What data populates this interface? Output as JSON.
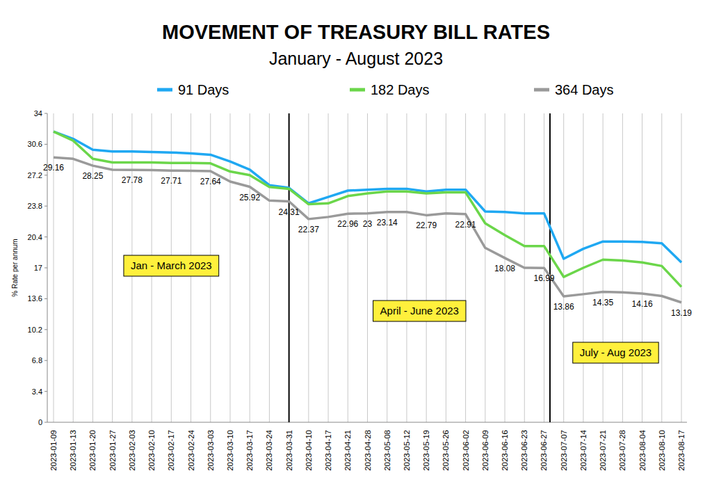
{
  "chart_data": {
    "type": "line",
    "title": "MOVEMENT OF TREASURY BILL RATES",
    "subtitle": "January - August 2023",
    "y_label": "% Rate per annum",
    "categories": [
      "2023-01-09",
      "2023-01-13",
      "2023-01-20",
      "2023-01-27",
      "2023-02-03",
      "2023-02-10",
      "2023-02-17",
      "2023-02-24",
      "2023-03-03",
      "2023-03-10",
      "2023-03-17",
      "2023-03-24",
      "2023-03-31",
      "2023-04-10",
      "2023-04-17",
      "2023-04-21",
      "2023-04-28",
      "2023-05-08",
      "2023-05-12",
      "2023-05-19",
      "2023-05-26",
      "2023-06-02",
      "2023-06-09",
      "2023-06-16",
      "2023-06-23",
      "2023-06-27",
      "2023-07-07",
      "2023-07-14",
      "2023-07-21",
      "2023-07-28",
      "2023-08-04",
      "2023-08-10",
      "2023-08-17"
    ],
    "series": [
      {
        "name": "91 Days",
        "color": "#1fa8f2",
        "values": [
          32.0,
          31.2,
          30.0,
          29.8,
          29.8,
          29.75,
          29.7,
          29.6,
          29.45,
          28.7,
          27.8,
          26.1,
          25.8,
          24.1,
          24.8,
          25.5,
          25.6,
          25.7,
          25.7,
          25.4,
          25.6,
          25.6,
          23.2,
          23.15,
          23.0,
          23.0,
          18.0,
          19.1,
          19.9,
          19.9,
          19.85,
          19.7,
          17.6
        ]
      },
      {
        "name": "182 Days",
        "color": "#6bd64a",
        "values": [
          32.0,
          31.0,
          29.0,
          28.6,
          28.6,
          28.6,
          28.55,
          28.55,
          28.5,
          27.6,
          27.2,
          25.9,
          25.7,
          24.0,
          24.1,
          24.9,
          25.2,
          25.4,
          25.4,
          25.2,
          25.3,
          25.3,
          21.9,
          20.6,
          19.4,
          19.4,
          16.0,
          17.0,
          17.9,
          17.8,
          17.6,
          17.2,
          14.9
        ]
      },
      {
        "name": "364 Days",
        "color": "#9a9a9a",
        "data_labels": true,
        "values": [
          29.16,
          29.0,
          28.25,
          27.8,
          27.78,
          27.75,
          27.71,
          27.68,
          27.64,
          26.5,
          25.92,
          24.4,
          24.31,
          22.37,
          22.6,
          22.96,
          23,
          23.14,
          23.14,
          22.79,
          23.0,
          22.91,
          19.2,
          18.08,
          17.0,
          16.99,
          13.86,
          14.1,
          14.35,
          14.3,
          14.16,
          13.9,
          13.19
        ],
        "value_labels": [
          "29.16",
          null,
          "28.25",
          null,
          "27.78",
          null,
          "27.71",
          null,
          "27.64",
          null,
          "25.92",
          null,
          "24.31",
          "22.37",
          null,
          "22.96",
          "23",
          "23.14",
          null,
          "22.79",
          null,
          "22.91",
          null,
          "18.08",
          null,
          "16.99",
          "13.86",
          null,
          "14.35",
          null,
          "14.16",
          null,
          "13.19"
        ]
      }
    ],
    "ylim": [
      0,
      34
    ],
    "yticks": [
      0,
      3.4,
      6.8,
      10.2,
      13.6,
      17,
      20.4,
      23.8,
      27.2,
      30.6,
      34
    ],
    "grid": true,
    "legend": "top",
    "annotations": [
      {
        "text": "Jan - March 2023"
      },
      {
        "text": "April - June 2023"
      },
      {
        "text": "July - Aug 2023"
      }
    ]
  }
}
